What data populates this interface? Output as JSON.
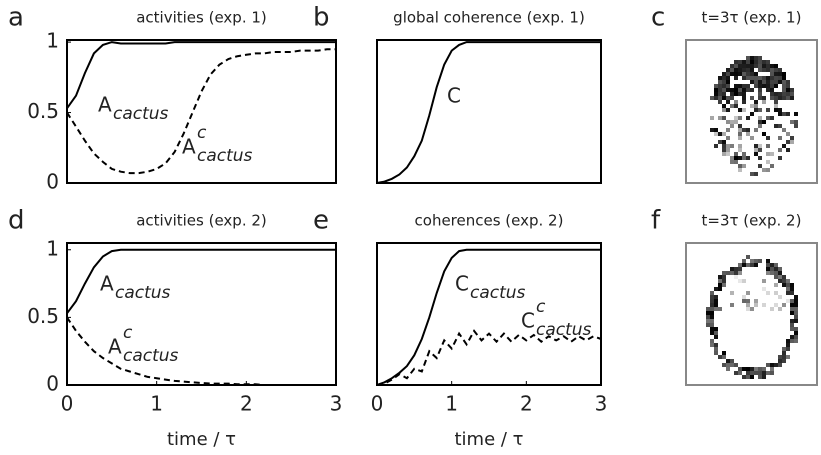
{
  "chart_data": [
    {
      "type": "line",
      "panel": "a",
      "title": "activities (exp. 1)",
      "x": [
        0,
        0.1,
        0.2,
        0.3,
        0.4,
        0.5,
        0.6,
        0.7,
        0.8,
        0.9,
        1,
        1.1,
        1.2,
        1.3,
        1.4,
        1.5,
        1.6,
        1.7,
        1.8,
        1.9,
        2,
        2.1,
        2.2,
        2.3,
        2.4,
        2.5,
        2.6,
        2.7,
        2.8,
        2.9,
        3
      ],
      "xlim": [
        0,
        3
      ],
      "ylim": [
        0,
        1.015
      ],
      "yticks": [
        0,
        0.5,
        1
      ],
      "series": [
        {
          "color": "#000000",
          "dash": false,
          "values": [
            0.53,
            0.62,
            0.78,
            0.92,
            0.98,
            1.0,
            0.99,
            0.99,
            0.99,
            0.99,
            0.99,
            0.99,
            1,
            1,
            1,
            1,
            1,
            1,
            1,
            1,
            1,
            1,
            1,
            1,
            1,
            1,
            1,
            1,
            1,
            1,
            1
          ]
        },
        {
          "color": "#000000",
          "dash": true,
          "values": [
            0.5,
            0.4,
            0.3,
            0.21,
            0.15,
            0.1,
            0.08,
            0.07,
            0.07,
            0.08,
            0.1,
            0.14,
            0.22,
            0.35,
            0.5,
            0.65,
            0.77,
            0.84,
            0.88,
            0.9,
            0.91,
            0.92,
            0.92,
            0.93,
            0.93,
            0.93,
            0.94,
            0.94,
            0.94,
            0.95,
            0.95
          ]
        }
      ],
      "annotations": [
        {
          "text": "A",
          "sub": "cactus"
        },
        {
          "text": "A",
          "sup": "c",
          "sub": "cactus"
        }
      ]
    },
    {
      "type": "line",
      "panel": "b",
      "title": "global coherence (exp. 1)",
      "x": [
        0,
        0.1,
        0.2,
        0.3,
        0.4,
        0.5,
        0.6,
        0.7,
        0.8,
        0.9,
        1,
        1.1,
        1.2,
        1.3,
        1.4,
        1.5,
        1.6,
        1.7,
        1.8,
        1.9,
        2,
        2.1,
        2.2,
        2.3,
        2.4,
        2.5,
        2.6,
        2.7,
        2.8,
        2.9,
        3
      ],
      "xlim": [
        0,
        3
      ],
      "ylim": [
        0,
        1.015
      ],
      "series": [
        {
          "color": "#000000",
          "dash": false,
          "values": [
            0,
            0.01,
            0.03,
            0.06,
            0.11,
            0.19,
            0.3,
            0.48,
            0.68,
            0.84,
            0.94,
            0.98,
            1,
            1,
            1,
            1,
            1,
            1,
            1,
            1,
            1,
            1,
            1,
            1,
            1,
            1,
            1,
            1,
            1,
            1,
            1
          ]
        }
      ],
      "annotations": [
        {
          "text": "C"
        }
      ]
    },
    {
      "type": "image",
      "panel": "c",
      "title": "t=3τ (exp. 1)",
      "style": "dense"
    },
    {
      "type": "line",
      "panel": "d",
      "title": "activities (exp. 2)",
      "x": [
        0,
        0.1,
        0.2,
        0.3,
        0.4,
        0.5,
        0.6,
        0.7,
        0.8,
        0.9,
        1,
        1.1,
        1.2,
        1.3,
        1.4,
        1.5,
        1.6,
        1.7,
        1.8,
        1.9,
        2,
        2.1,
        2.2,
        2.3,
        2.4,
        2.5,
        2.6,
        2.7,
        2.8,
        2.9,
        3
      ],
      "xlim": [
        0,
        3
      ],
      "ylim": [
        0,
        1.05
      ],
      "yticks": [
        0,
        0.5,
        1
      ],
      "xticks": [
        0,
        1,
        2,
        3
      ],
      "xlabel": "time / τ",
      "series": [
        {
          "color": "#000000",
          "dash": false,
          "values": [
            0.53,
            0.62,
            0.75,
            0.87,
            0.95,
            0.99,
            1,
            1,
            1,
            1,
            1,
            1,
            1,
            1,
            1,
            1,
            1,
            1,
            1,
            1,
            1,
            1,
            1,
            1,
            1,
            1,
            1,
            1,
            1,
            1,
            1
          ]
        },
        {
          "color": "#000000",
          "dash": true,
          "values": [
            0.5,
            0.4,
            0.32,
            0.25,
            0.2,
            0.16,
            0.12,
            0.1,
            0.08,
            0.06,
            0.05,
            0.04,
            0.03,
            0.025,
            0.02,
            0.015,
            0.01,
            0.01,
            0.01,
            0.005,
            0.005,
            0.005,
            0,
            0,
            0,
            0,
            0,
            0,
            0,
            0,
            0
          ]
        }
      ],
      "annotations": [
        {
          "text": "A",
          "sub": "cactus"
        },
        {
          "text": "A",
          "sup": "c",
          "sub": "cactus"
        }
      ]
    },
    {
      "type": "line",
      "panel": "e",
      "title": "coherences (exp. 2)",
      "x": [
        0,
        0.1,
        0.2,
        0.3,
        0.4,
        0.5,
        0.6,
        0.7,
        0.8,
        0.9,
        1,
        1.1,
        1.2,
        1.3,
        1.4,
        1.5,
        1.6,
        1.7,
        1.8,
        1.9,
        2,
        2.1,
        2.2,
        2.3,
        2.4,
        2.5,
        2.6,
        2.7,
        2.8,
        2.9,
        3
      ],
      "xlim": [
        0,
        3
      ],
      "ylim": [
        0,
        1.05
      ],
      "xticks": [
        0,
        1,
        2,
        3
      ],
      "xlabel": "time / τ",
      "series": [
        {
          "color": "#000000",
          "dash": false,
          "values": [
            0,
            0.02,
            0.05,
            0.09,
            0.14,
            0.22,
            0.34,
            0.5,
            0.68,
            0.84,
            0.94,
            0.99,
            1,
            1,
            1,
            1,
            1,
            1,
            1,
            1,
            1,
            1,
            1,
            1,
            1,
            1,
            1,
            1,
            1,
            1,
            1
          ]
        },
        {
          "color": "#000000",
          "dash": true,
          "values": [
            0,
            0.01,
            0.04,
            0.08,
            0.05,
            0.12,
            0.1,
            0.25,
            0.2,
            0.33,
            0.27,
            0.38,
            0.3,
            0.4,
            0.33,
            0.38,
            0.32,
            0.38,
            0.32,
            0.37,
            0.33,
            0.37,
            0.32,
            0.36,
            0.33,
            0.36,
            0.32,
            0.36,
            0.33,
            0.36,
            0.34
          ]
        }
      ],
      "annotations": [
        {
          "text": "C",
          "sub": "cactus"
        },
        {
          "text": "C",
          "sup": "c",
          "sub": "cactus"
        }
      ]
    },
    {
      "type": "image",
      "panel": "f",
      "title": "t=3τ (exp. 2)",
      "style": "outline"
    }
  ]
}
